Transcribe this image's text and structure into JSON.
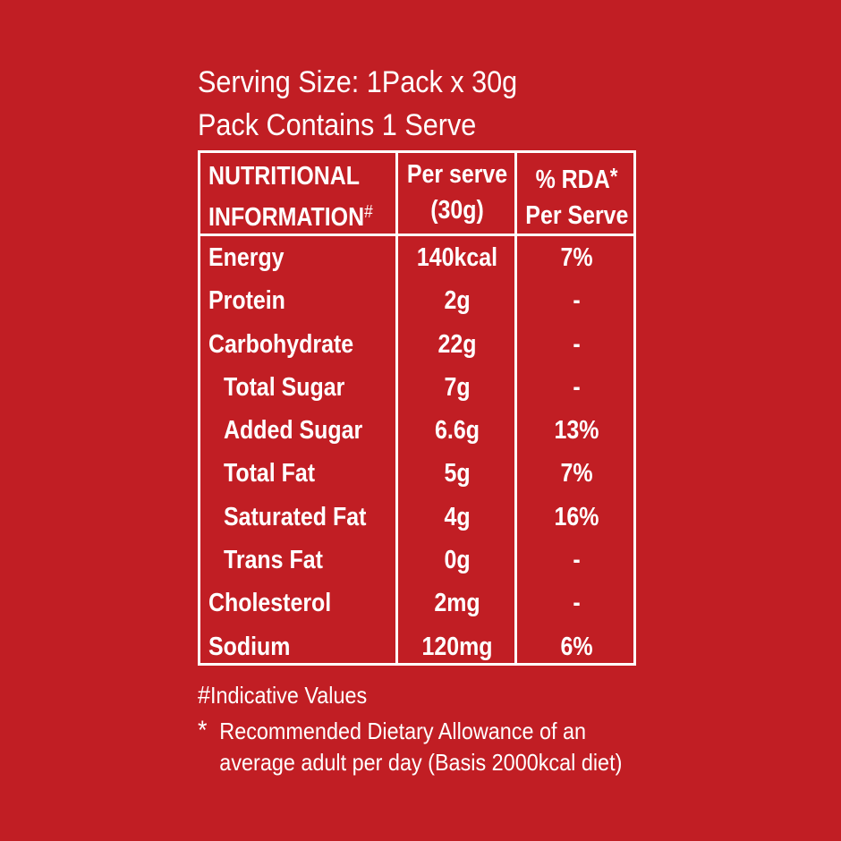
{
  "serving": {
    "size_line": "Serving Size: 1Pack x 30g",
    "contains_line": "Pack Contains 1 Serve"
  },
  "table": {
    "header": {
      "col1_line1": "NUTRITIONAL",
      "col1_line2": "INFORMATION",
      "col1_mark": "#",
      "col2_line1": "Per serve",
      "col2_line2": "(30g)",
      "col3_line1": "% RDA",
      "col3_mark": "*",
      "col3_line2": "Per Serve"
    },
    "rows": [
      {
        "name": "Energy",
        "per_serve": "140kcal",
        "rda": "7%",
        "indent": false
      },
      {
        "name": "Protein",
        "per_serve": "2g",
        "rda": "-",
        "indent": false
      },
      {
        "name": "Carbohydrate",
        "per_serve": "22g",
        "rda": "-",
        "indent": false
      },
      {
        "name": "Total Sugar",
        "per_serve": "7g",
        "rda": "-",
        "indent": true
      },
      {
        "name": "Added Sugar",
        "per_serve": "6.6g",
        "rda": "13%",
        "indent": true
      },
      {
        "name": "Total Fat",
        "per_serve": "5g",
        "rda": "7%",
        "indent": true
      },
      {
        "name": "Saturated Fat",
        "per_serve": "4g",
        "rda": "16%",
        "indent": true
      },
      {
        "name": "Trans Fat",
        "per_serve": "0g",
        "rda": "-",
        "indent": true
      },
      {
        "name": "Cholesterol",
        "per_serve": "2mg",
        "rda": "-",
        "indent": false
      },
      {
        "name": "Sodium",
        "per_serve": "120mg",
        "rda": "6%",
        "indent": false
      }
    ]
  },
  "notes": {
    "hash_mark": "#",
    "indicative": "Indicative Values",
    "star_mark": "*",
    "rda_line1": "Recommended Dietary Allowance of an",
    "rda_line2": "average adult per day (Basis 2000kcal diet)"
  },
  "colors": {
    "background": "#c11e24",
    "text": "#ffffff"
  }
}
